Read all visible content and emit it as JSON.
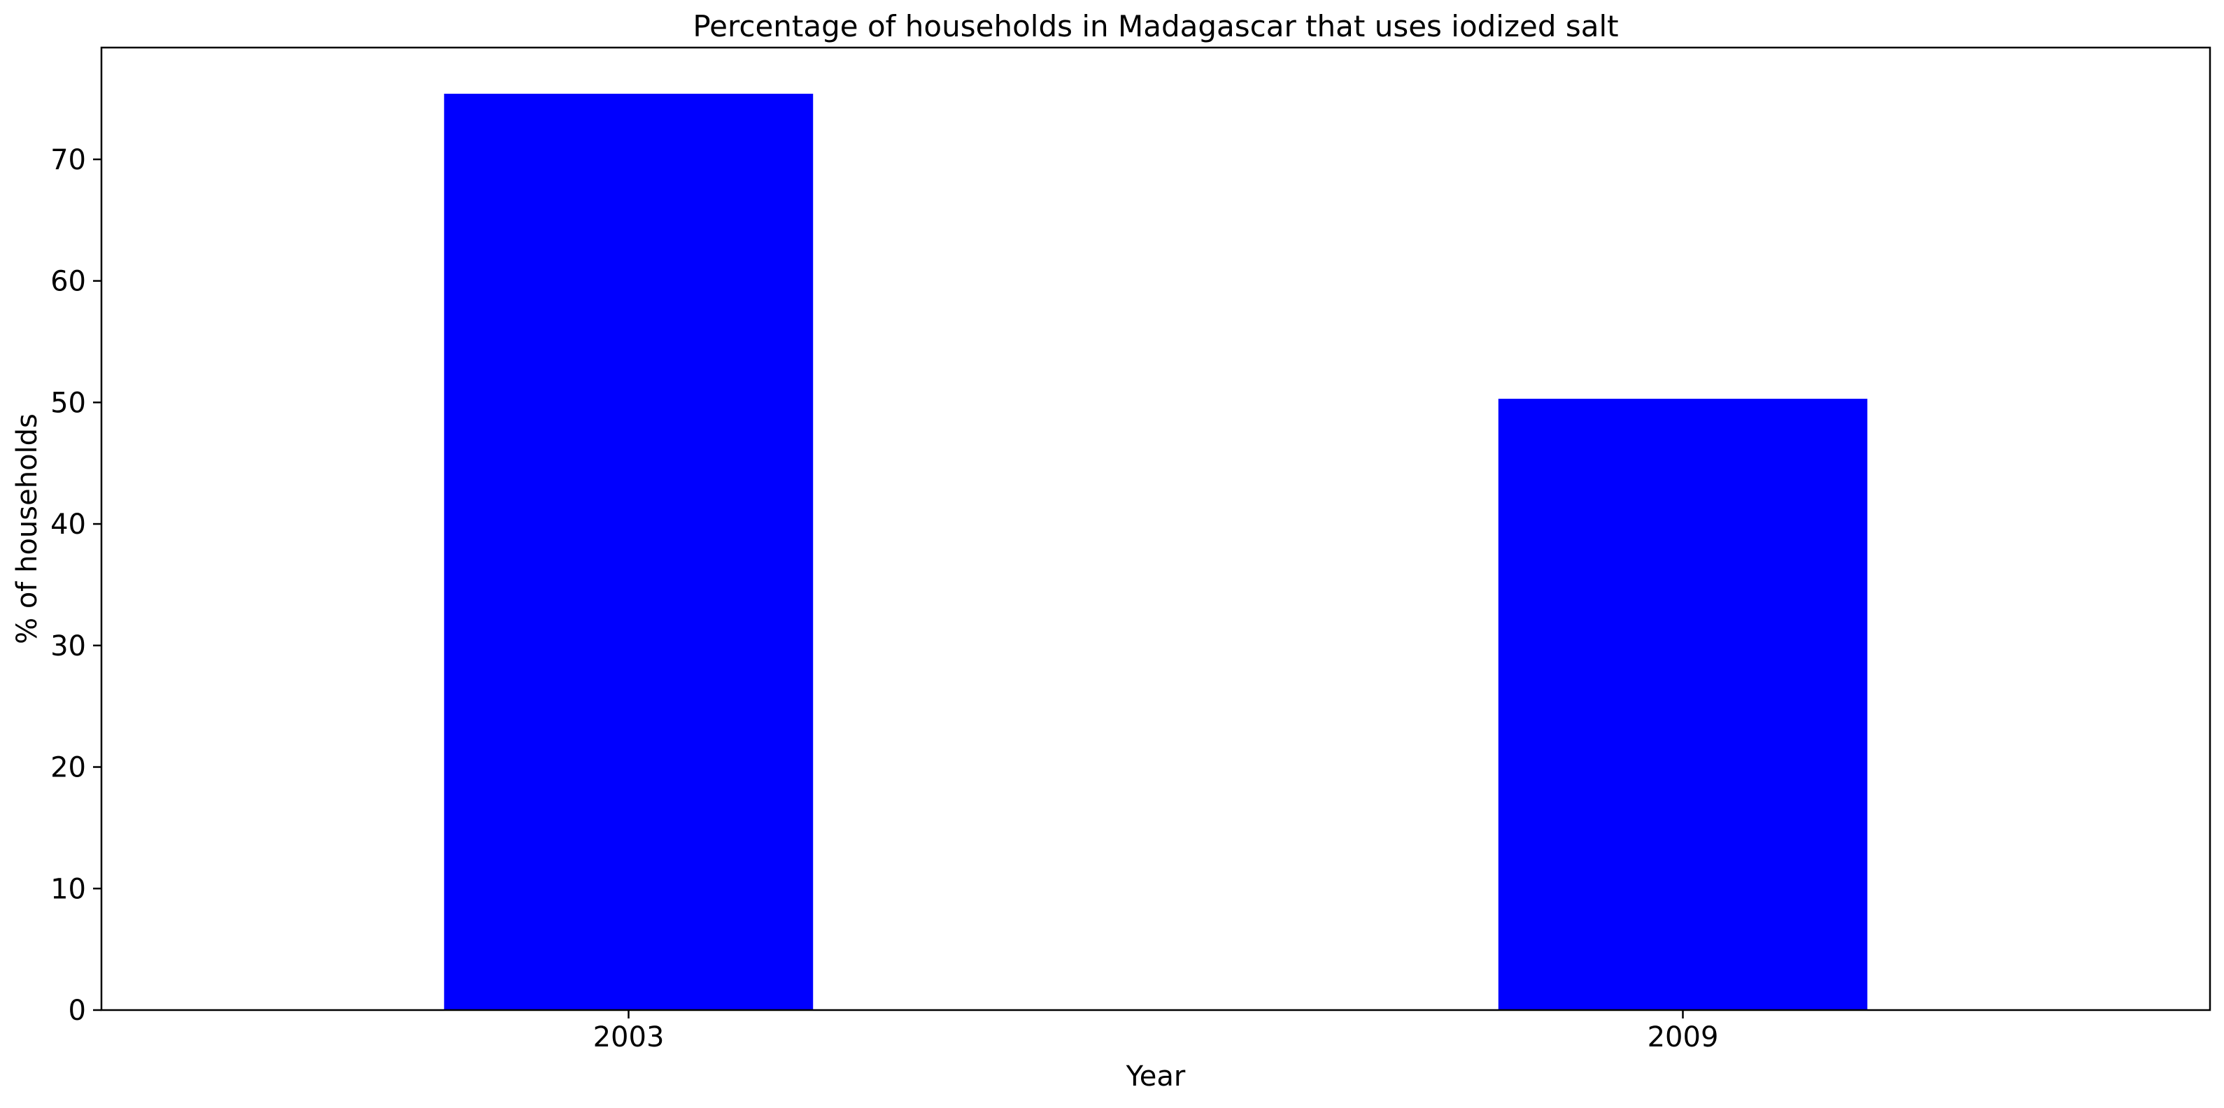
{
  "chart_data": {
    "type": "bar",
    "title": "Percentage of households in Madagascar that uses iodized salt",
    "xlabel": "Year",
    "ylabel": "% of households",
    "categories": [
      "2003",
      "2009"
    ],
    "values": [
      75.4,
      50.3
    ],
    "ylim": [
      0,
      79.2
    ],
    "yticks": [
      "0",
      "10",
      "20",
      "30",
      "40",
      "50",
      "60",
      "70"
    ],
    "bar_color": "#0000ff",
    "grid": false,
    "legend": "none"
  }
}
